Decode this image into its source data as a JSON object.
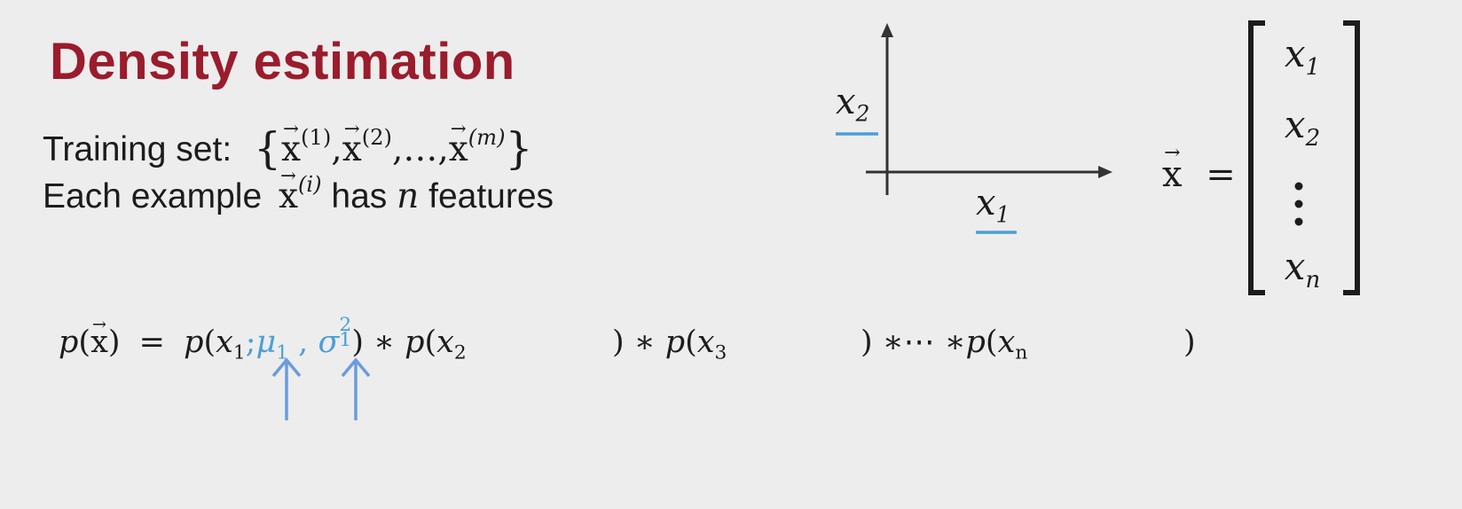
{
  "title": "Density estimation",
  "training_set": {
    "label": "Training set:",
    "elements": [
      "(1)",
      "(2)",
      "(m)"
    ],
    "ellipsis": "…"
  },
  "each_example": {
    "prefix": "Each example",
    "superscript": "(i)",
    "has": "has",
    "n": "n",
    "features": "features"
  },
  "plot": {
    "y_axis_label": "x",
    "y_axis_sub": "2",
    "x_axis_label": "x",
    "x_axis_sub": "1"
  },
  "vector": {
    "equals": "=",
    "rows": [
      {
        "var": "x",
        "sub": "1"
      },
      {
        "var": "x",
        "sub": "2"
      },
      {
        "var": "x",
        "sub": "n"
      }
    ]
  },
  "formula": {
    "p": "p",
    "equals": "=",
    "x1_sub": "1",
    "mu_sub": "1",
    "sigma_sub": "1",
    "sigma_sup": "2",
    "x2_sub": "2",
    "x3_sub": "3",
    "xn_sub": "n",
    "ellipsis": "⋯",
    "times": "∗"
  },
  "colors": {
    "title": "#9b1c2c",
    "highlight": "#4a9fd8",
    "arrow": "#6b9be0",
    "background": "#ededed"
  }
}
